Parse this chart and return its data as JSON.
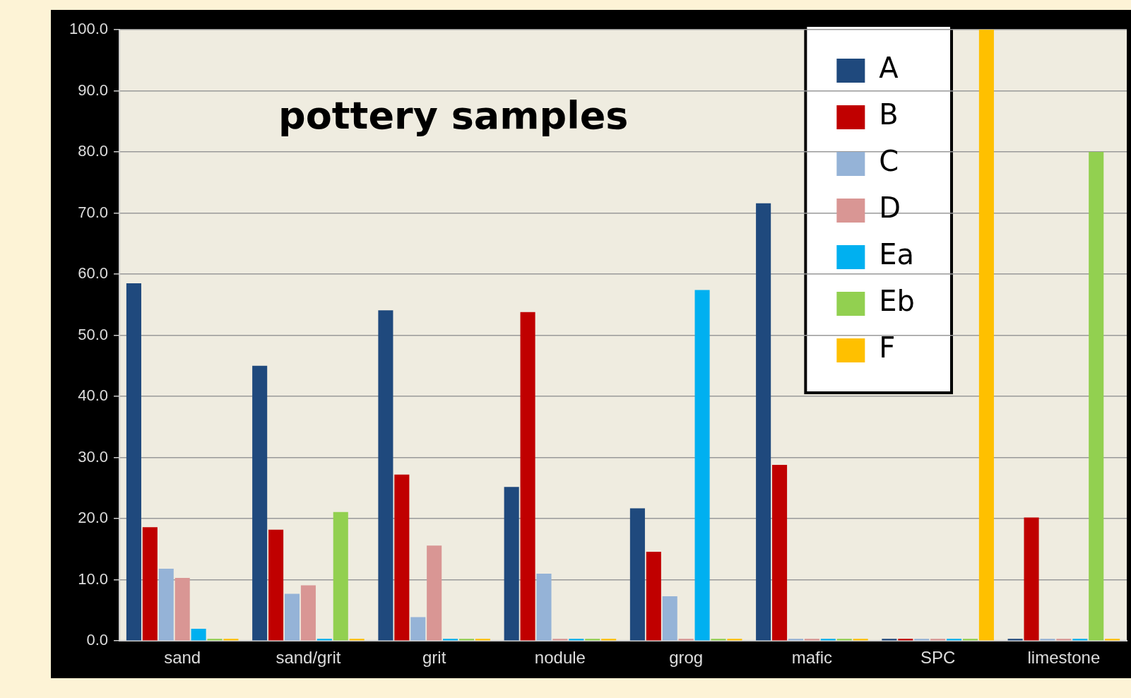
{
  "chart_data": {
    "type": "bar",
    "title": "pottery samples",
    "categories": [
      "sand",
      "sand/grit",
      "grit",
      "nodule",
      "grog",
      "mafic",
      "SPC",
      "limestone"
    ],
    "series": [
      {
        "name": "A",
        "color": "#1f497d",
        "values": [
          58.5,
          45.0,
          54.1,
          25.2,
          21.7,
          71.6,
          0,
          0
        ]
      },
      {
        "name": "B",
        "color": "#c00000",
        "values": [
          18.6,
          18.2,
          27.2,
          53.8,
          14.6,
          28.8,
          0,
          20.2
        ]
      },
      {
        "name": "C",
        "color": "#95b3d7",
        "values": [
          11.8,
          7.7,
          3.9,
          11.0,
          7.3,
          0,
          0,
          0
        ]
      },
      {
        "name": "D",
        "color": "#d99694",
        "values": [
          10.3,
          9.1,
          15.6,
          0,
          0,
          0,
          0,
          0
        ]
      },
      {
        "name": "Ea",
        "color": "#00b0f0",
        "values": [
          2.0,
          0,
          0,
          0,
          57.4,
          0,
          0,
          0
        ]
      },
      {
        "name": "Eb",
        "color": "#92d050",
        "values": [
          0,
          21.1,
          0,
          0,
          0,
          0,
          0,
          80.0
        ]
      },
      {
        "name": "F",
        "color": "#ffc000",
        "values": [
          0,
          0,
          0,
          0,
          0,
          0,
          100.0,
          0
        ]
      }
    ],
    "ylim": [
      0,
      100
    ],
    "yticks": [
      {
        "value": 0,
        "label": "0.0"
      },
      {
        "value": 10,
        "label": "10.0"
      },
      {
        "value": 20,
        "label": "20.0"
      },
      {
        "value": 30,
        "label": "30.0"
      },
      {
        "value": 40,
        "label": "40.0"
      },
      {
        "value": 50,
        "label": "50.0"
      },
      {
        "value": 60,
        "label": "60.0"
      },
      {
        "value": 70,
        "label": "70.0"
      },
      {
        "value": 80,
        "label": "80.0"
      },
      {
        "value": 90,
        "label": "90.0"
      },
      {
        "value": 100,
        "label": "100.0"
      }
    ],
    "grid": "y",
    "legend": "top right"
  }
}
